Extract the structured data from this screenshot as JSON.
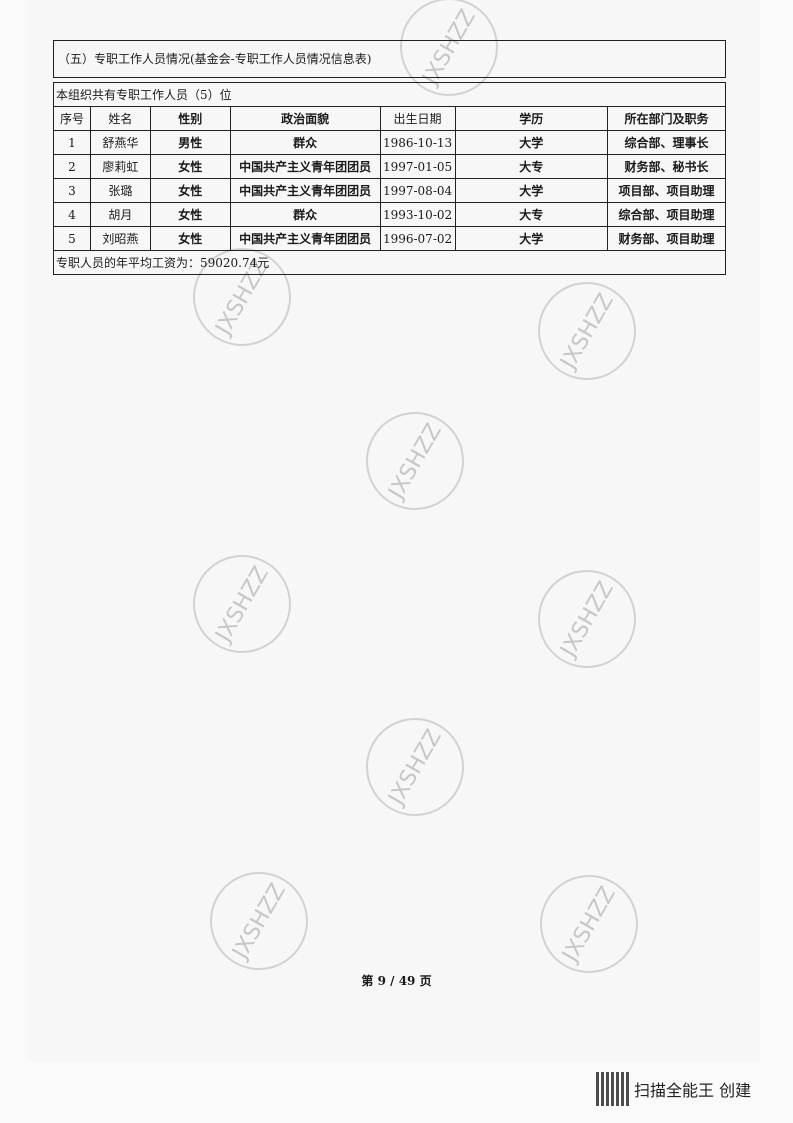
{
  "section_title": "（五）专职工作人员情况(基金会-专职工作人员情况信息表)",
  "summary": "本组织共有专职工作人员（5）位",
  "columns": [
    "序号",
    "姓名",
    "性别",
    "政治面貌",
    "出生日期",
    "学历",
    "所在部门及职务"
  ],
  "rows": [
    [
      "1",
      "舒燕华",
      "男性",
      "群众",
      "1986-10-13",
      "大学",
      "综合部、理事长"
    ],
    [
      "2",
      "廖莉虹",
      "女性",
      "中国共产主义青年团团员",
      "1997-01-05",
      "大专",
      "财务部、秘书长"
    ],
    [
      "3",
      "张璐",
      "女性",
      "中国共产主义青年团团员",
      "1997-08-04",
      "大学",
      "项目部、项目助理"
    ],
    [
      "4",
      "胡月",
      "女性",
      "群众",
      "1993-10-02",
      "大专",
      "综合部、项目助理"
    ],
    [
      "5",
      "刘昭燕",
      "女性",
      "中国共产主义青年团团员",
      "1996-07-02",
      "大学",
      "财务部、项目助理"
    ]
  ],
  "avg_salary": "专职人员的年平均工资为：59020.74元",
  "watermark": "JXSHZZ",
  "page_number": "第 9 / 49 页",
  "scanner_label": "扫描全能王  创建"
}
